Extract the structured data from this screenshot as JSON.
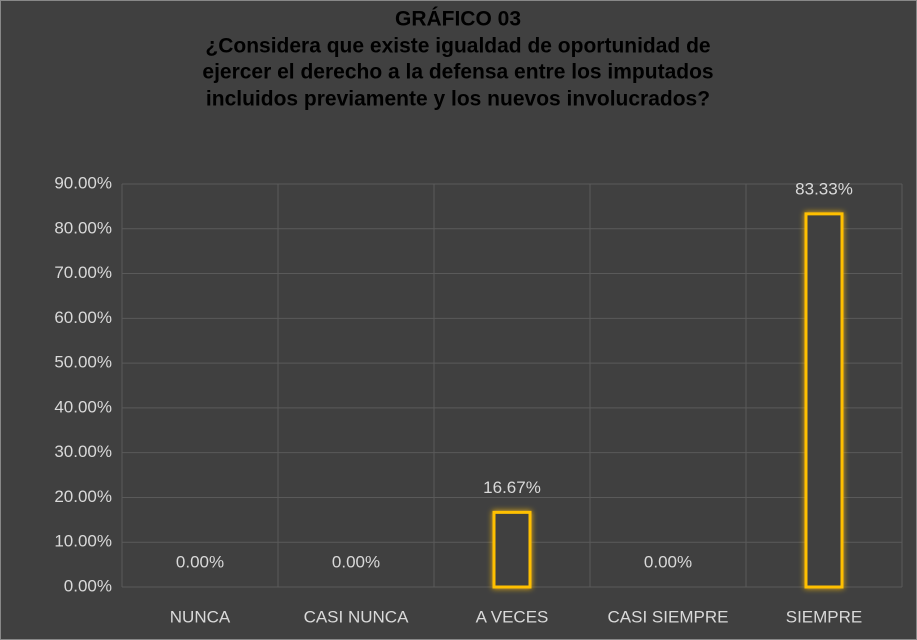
{
  "chart_data": {
    "type": "bar",
    "title": "GRÁFICO 03",
    "subtitle": [
      "¿Considera que existe igualdad de oportunidad de",
      "ejercer el derecho a la defensa entre los imputados",
      "incluidos previamente y los nuevos involucrados?"
    ],
    "categories": [
      "NUNCA",
      "CASI NUNCA",
      "A VECES",
      "CASI SIEMPRE",
      "SIEMPRE"
    ],
    "values": [
      0,
      0,
      16.67,
      0,
      83.33
    ],
    "value_labels": [
      "0.00%",
      "0.00%",
      "16.67%",
      "0.00%",
      "83.33%"
    ],
    "color": "#ffc000",
    "ylim": [
      0,
      90
    ],
    "yticks": [
      {
        "value": 0,
        "label": "0.00%"
      },
      {
        "value": 10,
        "label": "10.00%"
      },
      {
        "value": 20,
        "label": "20.00%"
      },
      {
        "value": 30,
        "label": "30.00%"
      },
      {
        "value": 40,
        "label": "40.00%"
      },
      {
        "value": 50,
        "label": "50.00%"
      },
      {
        "value": 60,
        "label": "60.00%"
      },
      {
        "value": 70,
        "label": "70.00%"
      },
      {
        "value": 80,
        "label": "80.00%"
      },
      {
        "value": 90,
        "label": "90.00%"
      }
    ],
    "grid": true
  }
}
